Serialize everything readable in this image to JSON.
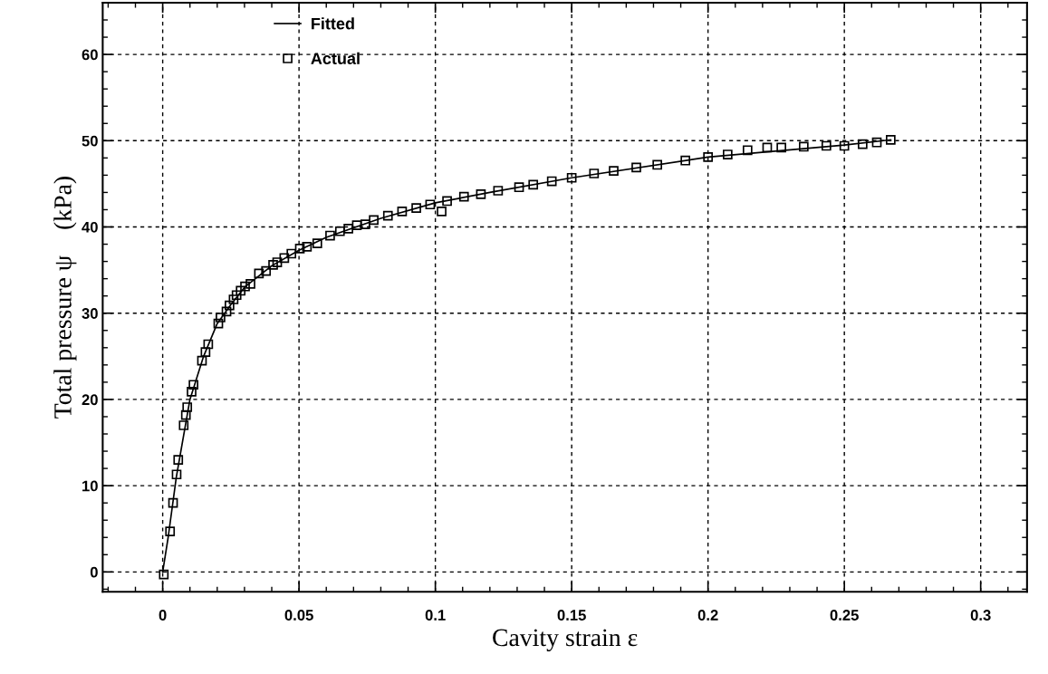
{
  "chart_data": {
    "type": "scatter",
    "xlabel": "Cavity strain ε",
    "ylabel": "Total pressure ψ    (kPa)",
    "xlim": [
      -0.022,
      0.317
    ],
    "ylim": [
      -2.3,
      66
    ],
    "xticks": [
      0,
      0.05,
      0.1,
      0.15,
      0.2,
      0.25,
      0.3
    ],
    "yticks": [
      0,
      10,
      20,
      30,
      40,
      50,
      60
    ],
    "grid": true,
    "legend": "top left",
    "series": [
      {
        "name": "Fitted",
        "type": "line",
        "color": "#000000",
        "marker": "none",
        "line_style": "solid",
        "x": [
          0,
          0.002,
          0.005,
          0.01,
          0.015,
          0.02,
          0.025,
          0.03,
          0.04,
          0.05,
          0.06,
          0.08,
          0.1,
          0.12,
          0.15,
          0.2,
          0.25,
          0.267
        ],
        "values": [
          0,
          4,
          11,
          20,
          25,
          28.8,
          31,
          33,
          35.5,
          37.3,
          38.8,
          41,
          42.8,
          44,
          45.7,
          48.1,
          49.5,
          50.1
        ]
      },
      {
        "name": "Actual",
        "color": "#000000",
        "marker": "square",
        "x": [
          0.0004,
          0.0027,
          0.0038,
          0.0051,
          0.0057,
          0.0077,
          0.0085,
          0.009,
          0.0106,
          0.0113,
          0.0144,
          0.0157,
          0.0167,
          0.0204,
          0.0212,
          0.0234,
          0.0245,
          0.026,
          0.0271,
          0.0286,
          0.0302,
          0.0322,
          0.0353,
          0.0379,
          0.0405,
          0.042,
          0.0446,
          0.0472,
          0.0503,
          0.0529,
          0.0567,
          0.0614,
          0.065,
          0.0681,
          0.0712,
          0.0743,
          0.0774,
          0.0826,
          0.0878,
          0.093,
          0.0981,
          0.1023,
          0.1043,
          0.1105,
          0.1167,
          0.123,
          0.1307,
          0.1359,
          0.1427,
          0.15,
          0.1582,
          0.1654,
          0.1737,
          0.1814,
          0.1917,
          0.2,
          0.2072,
          0.2145,
          0.2217,
          0.2269,
          0.2351,
          0.2434,
          0.25,
          0.2567,
          0.2619,
          0.267
        ],
        "values": [
          -0.3,
          4.7,
          8.0,
          11.3,
          13.0,
          17.0,
          18.2,
          19.1,
          20.9,
          21.7,
          24.5,
          25.5,
          26.4,
          28.8,
          29.5,
          30.2,
          30.9,
          31.6,
          32.1,
          32.6,
          33.1,
          33.4,
          34.6,
          34.9,
          35.6,
          35.9,
          36.4,
          36.9,
          37.5,
          37.7,
          38.1,
          39.0,
          39.5,
          39.8,
          40.2,
          40.3,
          40.8,
          41.3,
          41.8,
          42.2,
          42.6,
          41.8,
          43.0,
          43.5,
          43.8,
          44.2,
          44.6,
          44.9,
          45.3,
          45.7,
          46.2,
          46.5,
          46.9,
          47.2,
          47.7,
          48.1,
          48.4,
          48.9,
          49.2,
          49.2,
          49.3,
          49.4,
          49.4,
          49.6,
          49.8,
          50.1
        ]
      }
    ]
  }
}
